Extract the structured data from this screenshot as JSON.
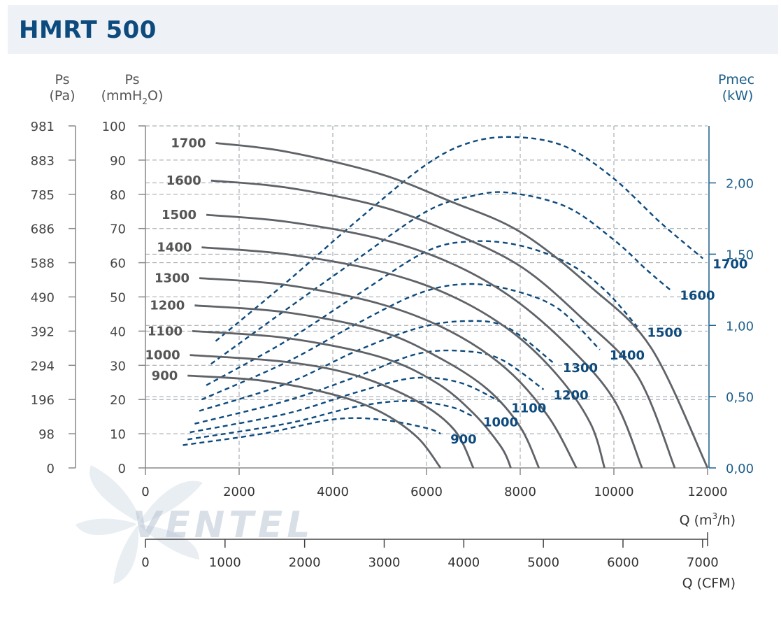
{
  "header": {
    "title": "HMRT 500"
  },
  "watermark": {
    "text": "VENTEL"
  },
  "axes": {
    "left_pa": {
      "label_top": "Ps",
      "label_bottom": "(Pa)",
      "ticks": [
        "0",
        "98",
        "196",
        "294",
        "392",
        "490",
        "588",
        "686",
        "785",
        "883",
        "981"
      ]
    },
    "left_mm": {
      "label_top": "Ps",
      "label_bottom_pre": "(mmH",
      "label_bottom_sub": "2",
      "label_bottom_post": "O)",
      "ticks": [
        "0",
        "10",
        "20",
        "30",
        "40",
        "50",
        "60",
        "70",
        "80",
        "90",
        "100"
      ]
    },
    "right_kw": {
      "label_top": "Pmec",
      "label_bottom": "(kW)",
      "ticks": [
        "0,00",
        "0,50",
        "1,00",
        "1,50",
        "2,00"
      ]
    },
    "x_m3h": {
      "label_pre": "Q (m",
      "label_sup": "3",
      "label_post": "/h)",
      "ticks": [
        "0",
        "2000",
        "4000",
        "6000",
        "8000",
        "10000",
        "12000"
      ]
    },
    "x_cfm": {
      "label": "Q (CFM)",
      "ticks": [
        "0",
        "1000",
        "2000",
        "3000",
        "4000",
        "5000",
        "6000",
        "7000"
      ]
    }
  },
  "colors": {
    "pressure_curve": "#5f6368",
    "power_curve": "#0d4a7d",
    "grid": "#9aa0a6",
    "axis_left": "#888888",
    "axis_right": "#1e5f8a",
    "title": "#0d4a7d"
  },
  "chart_data": {
    "type": "line",
    "title": "HMRT 500",
    "x_unit": "m3/h",
    "xlim": [
      0,
      12000
    ],
    "ylim_pressure_mmH2O": [
      0,
      100
    ],
    "ylim_power_kW": [
      0,
      2.4
    ],
    "pressure_series": [
      {
        "name": "1700",
        "points": [
          [
            1500,
            95
          ],
          [
            3000,
            92.5
          ],
          [
            5000,
            86
          ],
          [
            6500,
            78
          ],
          [
            8000,
            69
          ],
          [
            9500,
            53
          ],
          [
            10800,
            35
          ],
          [
            12000,
            0
          ]
        ]
      },
      {
        "name": "1600",
        "points": [
          [
            1400,
            84
          ],
          [
            3000,
            82
          ],
          [
            5000,
            76.5
          ],
          [
            6500,
            69
          ],
          [
            8000,
            59
          ],
          [
            9300,
            44
          ],
          [
            10500,
            27
          ],
          [
            11300,
            0
          ]
        ]
      },
      {
        "name": "1500",
        "points": [
          [
            1300,
            74
          ],
          [
            3000,
            72
          ],
          [
            5000,
            67
          ],
          [
            6500,
            60
          ],
          [
            7800,
            50
          ],
          [
            9000,
            36
          ],
          [
            10000,
            20
          ],
          [
            10600,
            0
          ]
        ]
      },
      {
        "name": "1400",
        "points": [
          [
            1200,
            64.5
          ],
          [
            3000,
            62.5
          ],
          [
            5000,
            57.5
          ],
          [
            6500,
            50.5
          ],
          [
            7800,
            40
          ],
          [
            8800,
            27
          ],
          [
            9500,
            13
          ],
          [
            9800,
            0
          ]
        ]
      },
      {
        "name": "1300",
        "points": [
          [
            1150,
            55.5
          ],
          [
            3000,
            53.5
          ],
          [
            5000,
            48
          ],
          [
            6500,
            40
          ],
          [
            7700,
            29
          ],
          [
            8600,
            15
          ],
          [
            9200,
            0
          ]
        ]
      },
      {
        "name": "1200",
        "points": [
          [
            1050,
            47.5
          ],
          [
            3000,
            45.5
          ],
          [
            5000,
            40
          ],
          [
            6300,
            32
          ],
          [
            7300,
            23
          ],
          [
            8000,
            12
          ],
          [
            8400,
            0
          ]
        ]
      },
      {
        "name": "1100",
        "points": [
          [
            1000,
            40
          ],
          [
            3000,
            38
          ],
          [
            5000,
            32.5
          ],
          [
            6200,
            25
          ],
          [
            7000,
            16
          ],
          [
            7600,
            6
          ],
          [
            7800,
            0
          ]
        ]
      },
      {
        "name": "1000",
        "points": [
          [
            950,
            33
          ],
          [
            3000,
            31
          ],
          [
            4500,
            27
          ],
          [
            5800,
            19.5
          ],
          [
            6600,
            11
          ],
          [
            7000,
            0
          ]
        ]
      },
      {
        "name": "900",
        "points": [
          [
            900,
            27
          ],
          [
            2500,
            25.5
          ],
          [
            4000,
            21.5
          ],
          [
            5000,
            16.5
          ],
          [
            5800,
            9
          ],
          [
            6300,
            0
          ]
        ]
      }
    ],
    "power_series": [
      {
        "name": "1700",
        "points": [
          [
            1500,
            0.89
          ],
          [
            3000,
            1.3
          ],
          [
            4500,
            1.73
          ],
          [
            6000,
            2.13
          ],
          [
            7000,
            2.29
          ],
          [
            8000,
            2.32
          ],
          [
            9000,
            2.25
          ],
          [
            10000,
            2.03
          ],
          [
            11000,
            1.72
          ],
          [
            11900,
            1.47
          ]
        ]
      },
      {
        "name": "1600",
        "points": [
          [
            1400,
            0.73
          ],
          [
            3000,
            1.11
          ],
          [
            4500,
            1.46
          ],
          [
            6000,
            1.8
          ],
          [
            7000,
            1.91
          ],
          [
            7800,
            1.93
          ],
          [
            9000,
            1.83
          ],
          [
            10000,
            1.6
          ],
          [
            10700,
            1.39
          ],
          [
            11200,
            1.25
          ]
        ]
      },
      {
        "name": "1500",
        "points": [
          [
            1300,
            0.58
          ],
          [
            3000,
            0.89
          ],
          [
            4500,
            1.21
          ],
          [
            6000,
            1.52
          ],
          [
            7000,
            1.59
          ],
          [
            8000,
            1.56
          ],
          [
            9000,
            1.44
          ],
          [
            9800,
            1.25
          ],
          [
            10500,
            0.99
          ]
        ]
      },
      {
        "name": "1400",
        "points": [
          [
            1200,
            0.48
          ],
          [
            3000,
            0.74
          ],
          [
            4500,
            1.01
          ],
          [
            5800,
            1.22
          ],
          [
            6800,
            1.29
          ],
          [
            7800,
            1.25
          ],
          [
            8800,
            1.12
          ],
          [
            9700,
            0.83
          ]
        ]
      },
      {
        "name": "1300",
        "points": [
          [
            1150,
            0.4
          ],
          [
            3000,
            0.59
          ],
          [
            4500,
            0.82
          ],
          [
            5800,
            0.98
          ],
          [
            6800,
            1.03
          ],
          [
            7700,
            0.99
          ],
          [
            8700,
            0.74
          ]
        ]
      },
      {
        "name": "1200",
        "points": [
          [
            1050,
            0.31
          ],
          [
            3000,
            0.47
          ],
          [
            4500,
            0.64
          ],
          [
            5800,
            0.8
          ],
          [
            6800,
            0.82
          ],
          [
            7600,
            0.76
          ],
          [
            8500,
            0.55
          ]
        ]
      },
      {
        "name": "1100",
        "points": [
          [
            950,
            0.25
          ],
          [
            3000,
            0.38
          ],
          [
            4500,
            0.53
          ],
          [
            5700,
            0.63
          ],
          [
            6700,
            0.6
          ],
          [
            7600,
            0.46
          ]
        ]
      },
      {
        "name": "1000",
        "points": [
          [
            900,
            0.2
          ],
          [
            3000,
            0.31
          ],
          [
            4500,
            0.43
          ],
          [
            5600,
            0.47
          ],
          [
            6500,
            0.43
          ],
          [
            7000,
            0.36
          ]
        ]
      },
      {
        "name": "900",
        "points": [
          [
            800,
            0.16
          ],
          [
            2500,
            0.24
          ],
          [
            4000,
            0.34
          ],
          [
            5000,
            0.34
          ],
          [
            6000,
            0.28
          ],
          [
            6300,
            0.24
          ]
        ]
      }
    ]
  }
}
